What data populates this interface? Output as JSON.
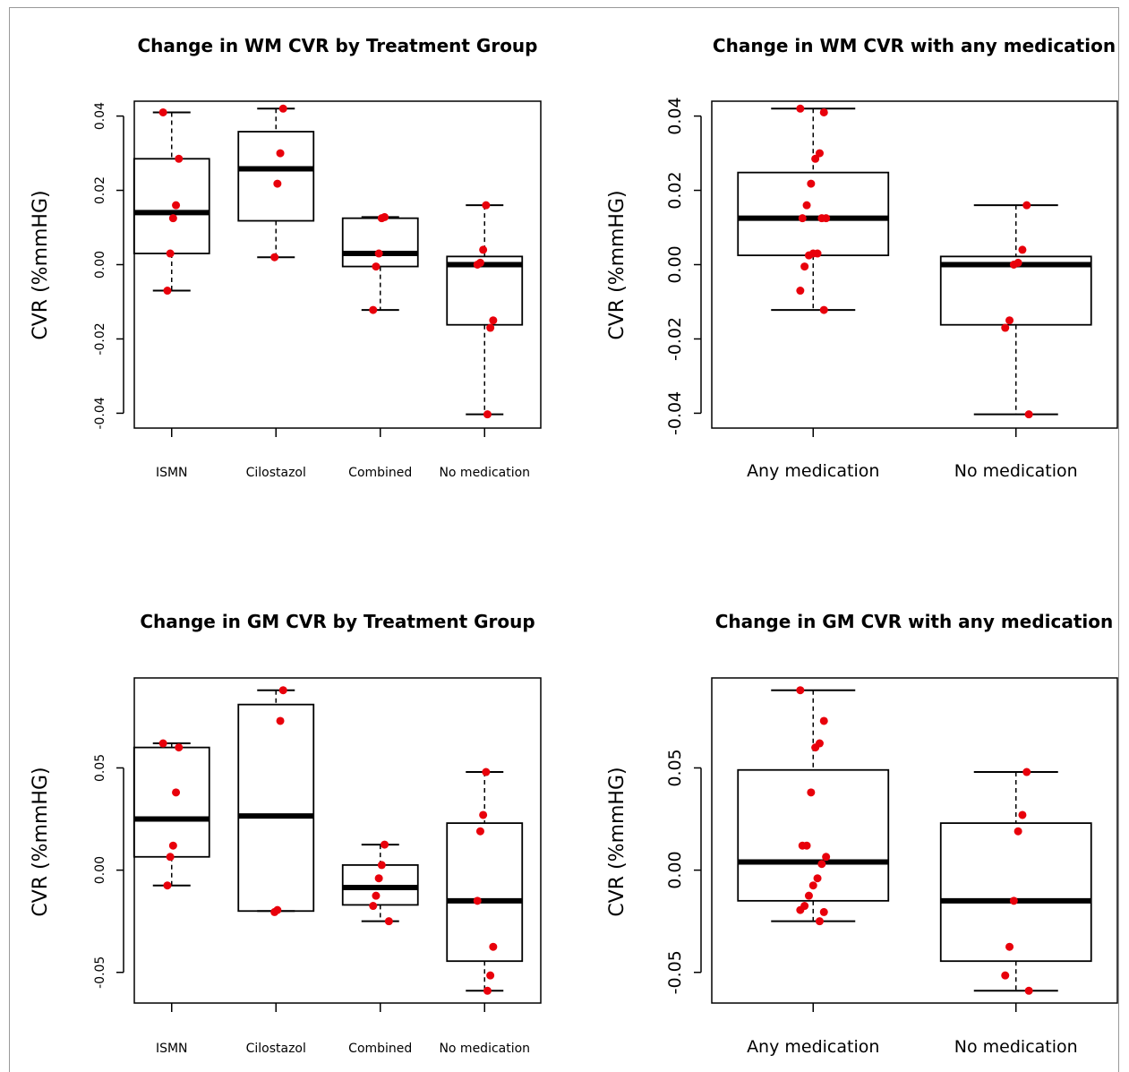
{
  "chart_data": [
    {
      "type": "box",
      "title": "Change in WM CVR by Treatment Group",
      "xlabel": "",
      "ylabel": "CVR (%mmHG)",
      "ylim": [
        -0.044,
        0.044
      ],
      "yticks": [
        -0.04,
        -0.02,
        0.0,
        0.02,
        0.04
      ],
      "ytick_labels": [
        "-0.04",
        "-0.02",
        "0.00",
        "0.02",
        "0.04"
      ],
      "categories": [
        "ISMN",
        "Cilostazol",
        "Combined",
        "No medication"
      ],
      "boxes": [
        {
          "lower_whisker": -0.007,
          "q1": 0.003,
          "median": 0.014,
          "q3": 0.0285,
          "upper_whisker": 0.041
        },
        {
          "lower_whisker": 0.002,
          "q1": 0.0118,
          "median": 0.0258,
          "q3": 0.0358,
          "upper_whisker": 0.042
        },
        {
          "lower_whisker": -0.0122,
          "q1": -0.0005,
          "median": 0.003,
          "q3": 0.0125,
          "upper_whisker": 0.0128
        },
        {
          "lower_whisker": -0.0403,
          "q1": -0.0162,
          "median": 0.0,
          "q3": 0.0022,
          "upper_whisker": 0.016
        }
      ],
      "points": [
        [
          0.041,
          0.0285,
          0.016,
          0.0125,
          0.003,
          -0.007
        ],
        [
          0.042,
          0.03,
          0.0218,
          0.002
        ],
        [
          0.0128,
          0.0125,
          0.003,
          -0.0005,
          -0.0122
        ],
        [
          0.016,
          0.004,
          0.0005,
          0.0,
          -0.015,
          -0.017,
          -0.0403
        ]
      ],
      "point_color": "#e8000b",
      "grid": false
    },
    {
      "type": "box",
      "title": "Change in WM CVR with any medication",
      "xlabel": "",
      "ylabel": "CVR (%mmHG)",
      "ylim": [
        -0.044,
        0.044
      ],
      "yticks": [
        -0.04,
        -0.02,
        0.0,
        0.02,
        0.04
      ],
      "ytick_labels": [
        "-0.04",
        "-0.02",
        "0.00",
        "0.02",
        "0.04"
      ],
      "categories": [
        "Any medication",
        "No medication"
      ],
      "boxes": [
        {
          "lower_whisker": -0.0122,
          "q1": 0.0025,
          "median": 0.0125,
          "q3": 0.0248,
          "upper_whisker": 0.042
        },
        {
          "lower_whisker": -0.0403,
          "q1": -0.0162,
          "median": 0.0,
          "q3": 0.0022,
          "upper_whisker": 0.016
        }
      ],
      "points": [
        [
          0.042,
          0.041,
          0.03,
          0.0285,
          0.0218,
          0.016,
          0.0125,
          0.0125,
          0.0125,
          0.003,
          0.003,
          0.0025,
          -0.0005,
          -0.007,
          -0.0122
        ],
        [
          0.016,
          0.004,
          0.0005,
          0.0,
          -0.015,
          -0.017,
          -0.0403
        ]
      ],
      "point_color": "#e8000b",
      "grid": false
    },
    {
      "type": "box",
      "title": "Change in GM CVR by Treatment Group",
      "xlabel": "",
      "ylabel": "CVR (%mmHG)",
      "ylim": [
        -0.065,
        0.094
      ],
      "yticks": [
        -0.05,
        0.0,
        0.05
      ],
      "ytick_labels": [
        "-0.05",
        "0.00",
        "0.05"
      ],
      "categories": [
        "ISMN",
        "Cilostazol",
        "Combined",
        "No medication"
      ],
      "boxes": [
        {
          "lower_whisker": -0.0075,
          "q1": 0.0065,
          "median": 0.025,
          "q3": 0.06,
          "upper_whisker": 0.062
        },
        {
          "lower_whisker": -0.02,
          "q1": -0.02,
          "median": 0.0265,
          "q3": 0.081,
          "upper_whisker": 0.088
        },
        {
          "lower_whisker": -0.025,
          "q1": -0.017,
          "median": -0.0085,
          "q3": 0.0025,
          "upper_whisker": 0.0125
        },
        {
          "lower_whisker": -0.059,
          "q1": -0.0445,
          "median": -0.015,
          "q3": 0.023,
          "upper_whisker": 0.048
        }
      ],
      "points": [
        [
          0.062,
          0.06,
          0.038,
          0.012,
          0.0065,
          -0.0075
        ],
        [
          0.088,
          0.073,
          -0.0195,
          -0.0205
        ],
        [
          0.0125,
          0.0025,
          -0.004,
          -0.0125,
          -0.0175,
          -0.025
        ],
        [
          0.048,
          0.027,
          0.019,
          -0.015,
          -0.0375,
          -0.0515,
          -0.059
        ]
      ],
      "point_color": "#e8000b",
      "grid": false
    },
    {
      "type": "box",
      "title": "Change in GM CVR with any medication",
      "xlabel": "",
      "ylabel": "CVR (%mmHG)",
      "ylim": [
        -0.065,
        0.094
      ],
      "yticks": [
        -0.05,
        0.0,
        0.05
      ],
      "ytick_labels": [
        "-0.05",
        "0.00",
        "0.05"
      ],
      "categories": [
        "Any medication",
        "No medication"
      ],
      "boxes": [
        {
          "lower_whisker": -0.025,
          "q1": -0.015,
          "median": 0.004,
          "q3": 0.049,
          "upper_whisker": 0.088
        },
        {
          "lower_whisker": -0.059,
          "q1": -0.0445,
          "median": -0.015,
          "q3": 0.023,
          "upper_whisker": 0.048
        }
      ],
      "points": [
        [
          0.088,
          0.073,
          0.062,
          0.06,
          0.038,
          0.012,
          0.012,
          0.0065,
          0.003,
          -0.004,
          -0.0075,
          -0.0125,
          -0.0175,
          -0.0195,
          -0.0205,
          -0.025
        ],
        [
          0.048,
          0.027,
          0.019,
          -0.015,
          -0.0375,
          -0.0515,
          -0.059
        ]
      ],
      "point_color": "#e8000b",
      "grid": false
    }
  ]
}
